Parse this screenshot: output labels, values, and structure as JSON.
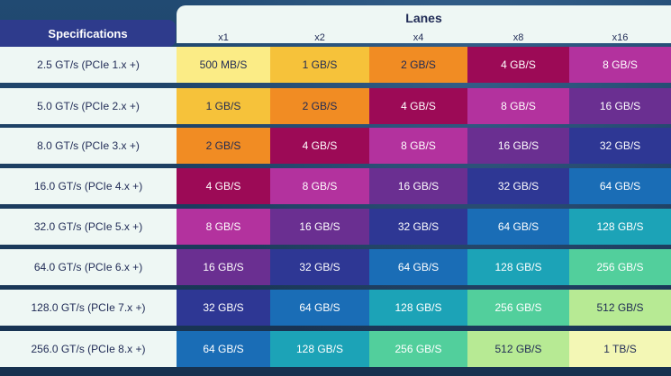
{
  "header": {
    "specifications_label": "Specifications",
    "lanes_title": "Lanes",
    "lanes": [
      "x1",
      "x2",
      "x4",
      "x8",
      "x16"
    ]
  },
  "rows": [
    {
      "spec": "2.5 GT/s (PCIe 1.x +)",
      "values": [
        "500 MB/S",
        "1 GB/S",
        "2 GB/S",
        "4 GB/S",
        "8 GB/S"
      ]
    },
    {
      "spec": "5.0 GT/s (PCIe 2.x +)",
      "values": [
        "1 GB/S",
        "2 GB/S",
        "4 GB/S",
        "8 GB/S",
        "16 GB/S"
      ]
    },
    {
      "spec": "8.0 GT/s (PCIe 3.x +)",
      "values": [
        "2 GB/S",
        "4 GB/S",
        "8 GB/S",
        "16 GB/S",
        "32 GB/S"
      ]
    },
    {
      "spec": "16.0 GT/s (PCIe 4.x +)",
      "values": [
        "4 GB/S",
        "8 GB/S",
        "16 GB/S",
        "32 GB/S",
        "64 GB/S"
      ]
    },
    {
      "spec": "32.0 GT/s (PCIe 5.x +)",
      "values": [
        "8 GB/S",
        "16 GB/S",
        "32 GB/S",
        "64 GB/S",
        "128 GB/S"
      ]
    },
    {
      "spec": "64.0 GT/s (PCIe 6.x +)",
      "values": [
        "16 GB/S",
        "32 GB/S",
        "64 GB/S",
        "128 GB/S",
        "256 GB/S"
      ]
    },
    {
      "spec": "128.0 GT/s (PCIe 7.x +)",
      "values": [
        "32 GB/S",
        "64 GB/S",
        "128 GB/S",
        "256 GB/S",
        "512 GB/S"
      ]
    },
    {
      "spec": "256.0 GT/s (PCIe 8.x +)",
      "values": [
        "64 GB/S",
        "128 GB/S",
        "256 GB/S",
        "512 GB/S",
        "1 TB/S"
      ]
    }
  ],
  "bandwidth_colors": {
    "500 MB/S": "#fbec86",
    "1 GB/S": "#f6c23a",
    "2 GB/S": "#f18c23",
    "4 GB/S": "#9c0a56",
    "8 GB/S": "#b3329e",
    "16 GB/S": "#6a2f91",
    "32 GB/S": "#2e3794",
    "64 GB/S": "#1a6db6",
    "128 GB/S": "#1ca3b7",
    "256 GB/S": "#52cf9c",
    "512 GB/S": "#b7ea94",
    "1 TB/S": "#f3f7b5"
  },
  "dark_text_values": [
    "500 MB/S",
    "1 GB/S",
    "2 GB/S",
    "512 GB/S",
    "1 TB/S"
  ]
}
